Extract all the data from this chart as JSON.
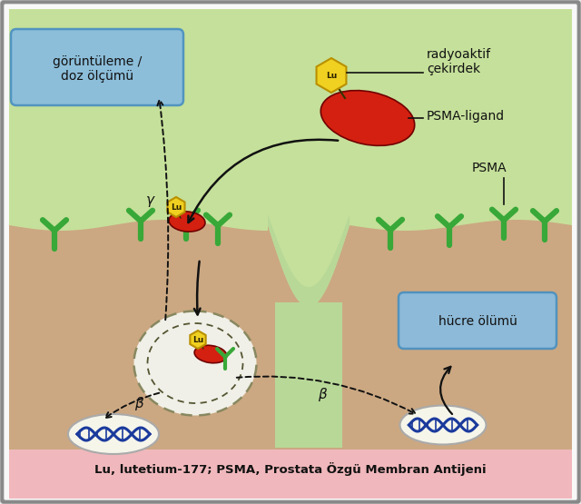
{
  "bg_green": "#c5e09a",
  "bg_cell": "#cba882",
  "bg_pink": "#f0b8bc",
  "bg_white": "#f8f8f8",
  "caption": "Lu, lutetium-177; PSMA, Prostata Özgü Membran Antijeni",
  "label_radyoaktif": "radyoaktif\nçekirdek",
  "label_psmaligand": "PSMA-ligand",
  "label_psma": "PSMA",
  "label_goruntulem": "görüntüleme /\ndoz ölçümü",
  "label_hucre": "hücre ölümü",
  "label_beta": "β",
  "label_gamma": "γ",
  "lu_color": "#f0d020",
  "lu_border": "#b89000",
  "ligand_color": "#d42010",
  "green_receptor": "#38a838",
  "dna_blue": "#1a3a9c",
  "dna_bg": "#f5f5ea",
  "nucleus_bg": "#f0f0e8",
  "box_blue_bg": "#88bce0",
  "box_blue_border": "#4a90c0",
  "channel_green": "#b8d898"
}
